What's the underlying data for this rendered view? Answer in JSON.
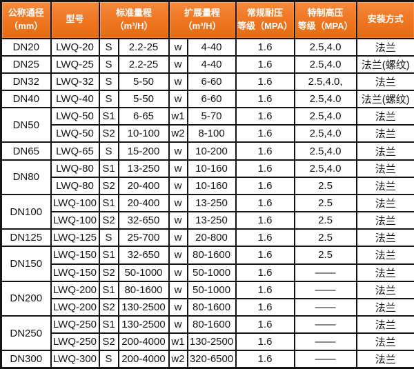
{
  "table": {
    "header": [
      {
        "line1": "公称通径",
        "line2": "（mm）"
      },
      {
        "line1": "型号"
      },
      {
        "line1": "标准量程",
        "line2": "（m³/H）"
      },
      {
        "line1": "扩展量程",
        "line2": "（m³/H）"
      },
      {
        "line1": "常规耐压",
        "line2": "等级（MPA）"
      },
      {
        "line1": "特制高压",
        "line2": "等级（MPA）"
      },
      {
        "line1": "安装方式"
      }
    ],
    "rows": [
      {
        "dn": "DN20",
        "span": 1,
        "model": "LWQ-20",
        "s": "S",
        "standard": "2.2-25",
        "w": "w",
        "extended": "4-40",
        "regular": "1.6",
        "special": "2.5,4.0",
        "install": "法兰"
      },
      {
        "dn": "DN25",
        "span": 1,
        "model": "LWQ-25",
        "s": "S",
        "standard": "2.2-25",
        "w": "w",
        "extended": "4-40",
        "regular": "1.6",
        "special": "2.5,4.0",
        "install": "法兰(螺纹)"
      },
      {
        "dn": "DN32",
        "span": 1,
        "model": "LWQ-32",
        "s": "S",
        "standard": "5-50",
        "w": "w",
        "extended": "6-60",
        "regular": "1.6",
        "special": "2.5,4.0,",
        "install": "法兰"
      },
      {
        "dn": "DN40",
        "span": 1,
        "model": "LWQ-40",
        "s": "S",
        "standard": "5-50",
        "w": "w",
        "extended": "6-60",
        "regular": "1.6",
        "special": "2.5,4.0",
        "install": "法兰(螺纹)"
      },
      {
        "dn": "DN50",
        "span": 2,
        "model": "LWQ-50",
        "s": "S1",
        "standard": "6-65",
        "w": "w1",
        "extended": "5-70",
        "regular": "1.6",
        "special": "2.5,4.0",
        "install": "法兰"
      },
      {
        "dn": null,
        "model": "LWQ-50",
        "s": "S2",
        "standard": "10-100",
        "w": "w2",
        "extended": "8-100",
        "regular": "1.6",
        "special": "2.5,4.0",
        "install": "法兰"
      },
      {
        "dn": "DN65",
        "span": 1,
        "model": "LWQ-65",
        "s": "S",
        "standard": "15-200",
        "w": "w",
        "extended": "10-200",
        "regular": "1.6",
        "special": "2.5,4.0",
        "install": "法兰"
      },
      {
        "dn": "DN80",
        "span": 2,
        "model": "LWQ-80",
        "s": "S1",
        "standard": "13-250",
        "w": "w",
        "extended": "10-160",
        "regular": "1.6",
        "special": "2.5,4.0",
        "install": "法兰"
      },
      {
        "dn": null,
        "model": "LWQ-80",
        "s": "S2",
        "standard": "20-400",
        "w": "w",
        "extended": "10-160",
        "regular": "1.6",
        "special": "2.5",
        "install": "法兰"
      },
      {
        "dn": "DN100",
        "span": 2,
        "model": "LWQ-100",
        "s": "S1",
        "standard": "20-400",
        "w": "w",
        "extended": "13-250",
        "regular": "1.6",
        "special": "2.5",
        "install": "法兰"
      },
      {
        "dn": null,
        "model": "LWQ-100",
        "s": "S2",
        "standard": "32-650",
        "w": "w",
        "extended": "13-250",
        "regular": "1.6",
        "special": "2.5",
        "install": "法兰"
      },
      {
        "dn": "DN125",
        "span": 1,
        "model": "LWQ-125",
        "s": "S",
        "standard": "25-700",
        "w": "w",
        "extended": "20-800",
        "regular": "1.6",
        "special": "2.5",
        "install": "法兰"
      },
      {
        "dn": "DN150",
        "span": 2,
        "model": "LWQ-150",
        "s": "S1",
        "standard": "32-650",
        "w": "w",
        "extended": "80-1600",
        "regular": "1.6",
        "special": "2.5",
        "install": "法兰"
      },
      {
        "dn": null,
        "model": "LWQ-150",
        "s": "S2",
        "standard": "50-1000",
        "w": "w",
        "extended": "50-1000",
        "regular": "1.6",
        "special": "——",
        "install": "法兰"
      },
      {
        "dn": "DN200",
        "span": 2,
        "model": "LWQ-200",
        "s": "S1",
        "standard": "80-1600",
        "w": "w",
        "extended": "50-1000",
        "regular": "1.6",
        "special": "——",
        "install": "法兰"
      },
      {
        "dn": null,
        "model": "LWQ-200",
        "s": "S2",
        "standard": "130-2500",
        "w": "w",
        "extended": "80-1600",
        "regular": "1.6",
        "special": "——",
        "install": "法兰"
      },
      {
        "dn": "DN250",
        "span": 2,
        "model": "LWQ-250",
        "s": "S1",
        "standard": "130-2500",
        "w": "w",
        "extended": "80-1600",
        "regular": "1.6",
        "special": "——",
        "install": "法兰"
      },
      {
        "dn": null,
        "model": "LWQ-250",
        "s": "S2",
        "standard": "200-4000",
        "w": "w1",
        "extended": "130-2500",
        "regular": "1.6",
        "special": "——",
        "install": "法兰"
      },
      {
        "dn": "DN300",
        "span": 1,
        "model": "LWQ-300",
        "s": "S",
        "standard": "200-4000",
        "w": "w2",
        "extended": "320-6500",
        "regular": "1.6",
        "special": "——",
        "install": "法兰"
      }
    ],
    "colors": {
      "header_bg": "#ee7420",
      "header_bg_light": "#f5893b",
      "header_bg_dark": "#e66c10",
      "header_text": "#ffffff",
      "border": "#151515",
      "cell_bg": "#ffffff",
      "cell_text": "#141414"
    }
  }
}
